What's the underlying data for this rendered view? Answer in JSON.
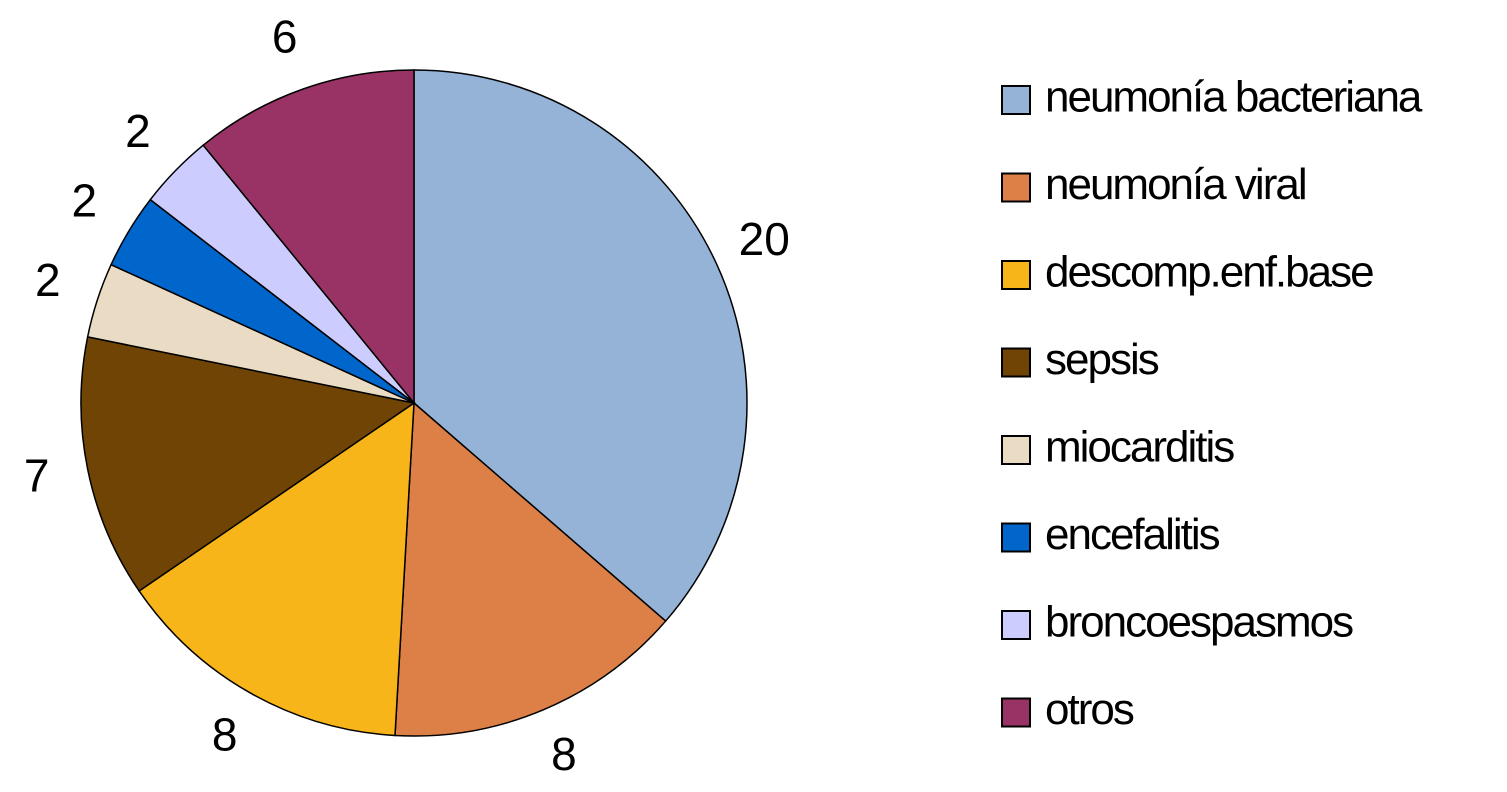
{
  "chart_data": {
    "type": "pie",
    "categories": [
      "neumonía bacteriana",
      "neumonía viral",
      "descomp.enf.base",
      "sepsis",
      "miocarditis",
      "encefalitis",
      "broncoespasmos",
      "otros"
    ],
    "values": [
      20,
      8,
      8,
      7,
      2,
      2,
      2,
      6
    ],
    "colors": [
      "#95b3d7",
      "#dd8047",
      "#f7b519",
      "#704405",
      "#eadcc4",
      "#0066cc",
      "#ccccff",
      "#993366"
    ],
    "legend": "right"
  }
}
